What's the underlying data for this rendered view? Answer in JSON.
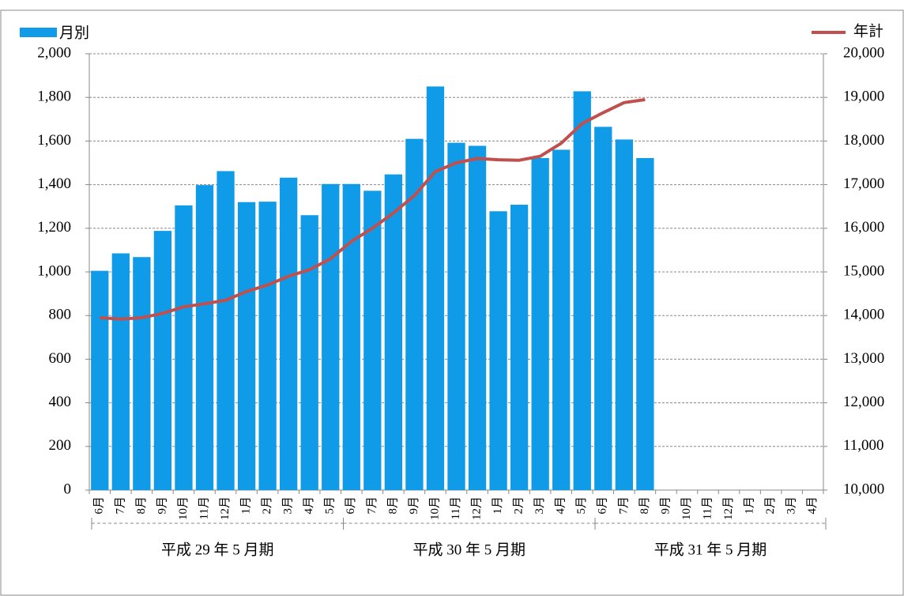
{
  "chart_data": {
    "type": "bar-line",
    "groups": [
      {
        "label": "平成 29 年 5 月期",
        "categories": [
          "6月",
          "7月",
          "8月",
          "9月",
          "10月",
          "11月",
          "12月",
          "1月",
          "2月",
          "3月",
          "4月",
          "5月"
        ]
      },
      {
        "label": "平成 30 年 5 月期",
        "categories": [
          "6月",
          "7月",
          "8月",
          "9月",
          "10月",
          "11月",
          "12月",
          "1月",
          "2月",
          "3月",
          "4月",
          "5月"
        ]
      },
      {
        "label": "平成 31 年 5 月期",
        "categories": [
          "6月",
          "7月",
          "8月",
          "9月",
          "10月",
          "11月",
          "12月",
          "1月",
          "2月",
          "3月",
          "4月"
        ]
      }
    ],
    "series": [
      {
        "name": "月別",
        "type": "bar",
        "color": "#0f9be8",
        "values": [
          1005,
          1085,
          1068,
          1188,
          1305,
          1398,
          1462,
          1320,
          1322,
          1432,
          1260,
          1403,
          1403,
          1372,
          1447,
          1610,
          1850,
          1592,
          1578,
          1278,
          1308,
          1522,
          1560,
          1828,
          1665,
          1607,
          1522,
          null,
          null,
          null,
          null,
          null,
          null,
          null,
          null
        ]
      },
      {
        "name": "年計",
        "type": "line",
        "axis": "y2",
        "color": "#c0504d",
        "values": [
          13950,
          13920,
          13950,
          14050,
          14200,
          14270,
          14350,
          14550,
          14700,
          14900,
          15050,
          15300,
          15700,
          16000,
          16350,
          16750,
          17300,
          17500,
          17600,
          17570,
          17560,
          17650,
          17950,
          18400,
          18650,
          18880,
          18950,
          null,
          null,
          null,
          null,
          null,
          null,
          null,
          null
        ]
      }
    ],
    "ylim": [
      0,
      2000
    ],
    "yticks": [
      0,
      200,
      400,
      600,
      800,
      {
        "value": 1000,
        "label": "1,000"
      },
      {
        "value": 1200,
        "label": "1,200"
      },
      {
        "value": 1400,
        "label": "1,400"
      },
      {
        "value": 1600,
        "label": "1,600"
      },
      {
        "value": 1800,
        "label": "1,800"
      },
      {
        "value": 2000,
        "label": "2,000"
      }
    ],
    "y2lim": [
      10000,
      20000
    ],
    "y2ticks": [
      {
        "value": 10000,
        "label": "10,000"
      },
      {
        "value": 11000,
        "label": "11,000"
      },
      {
        "value": 12000,
        "label": "12,000"
      },
      {
        "value": 13000,
        "label": "13,000"
      },
      {
        "value": 14000,
        "label": "14,000"
      },
      {
        "value": 15000,
        "label": "15,000"
      },
      {
        "value": 16000,
        "label": "16,000"
      },
      {
        "value": 17000,
        "label": "17,000"
      },
      {
        "value": 18000,
        "label": "18,000"
      },
      {
        "value": 19000,
        "label": "19,000"
      },
      {
        "value": 20000,
        "label": "20,000"
      }
    ],
    "grid": true
  }
}
